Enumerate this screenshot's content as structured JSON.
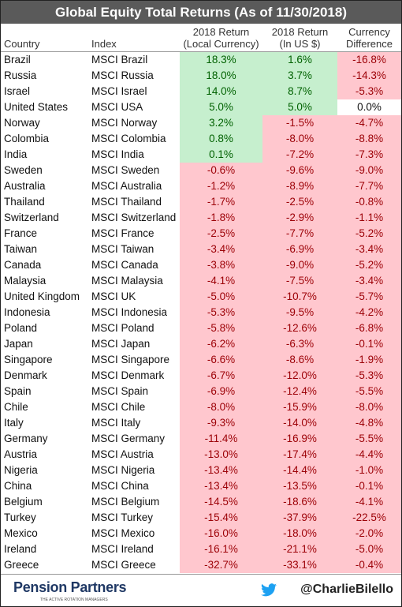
{
  "header": {
    "title": "Global Equity Total Returns (As of 11/30/2018)"
  },
  "table": {
    "columns": [
      [
        "Country"
      ],
      [
        "Index"
      ],
      [
        "2018 Return",
        "(Local Currency)"
      ],
      [
        "2018 Return",
        "(In US $)"
      ],
      [
        "Currency",
        "Difference"
      ]
    ],
    "rows": [
      [
        "Brazil",
        "MSCI Brazil",
        "18.3%",
        "1.6%",
        "-16.8%"
      ],
      [
        "Russia",
        "MSCI Russia",
        "18.0%",
        "3.7%",
        "-14.3%"
      ],
      [
        "Israel",
        "MSCI Israel",
        "14.0%",
        "8.7%",
        "-5.3%"
      ],
      [
        "United States",
        "MSCI USA",
        "5.0%",
        "5.0%",
        "0.0%"
      ],
      [
        "Norway",
        "MSCI Norway",
        "3.2%",
        "-1.5%",
        "-4.7%"
      ],
      [
        "Colombia",
        "MSCI Colombia",
        "0.8%",
        "-8.0%",
        "-8.8%"
      ],
      [
        "India",
        "MSCI India",
        "0.1%",
        "-7.2%",
        "-7.3%"
      ],
      [
        "Sweden",
        "MSCI Sweden",
        "-0.6%",
        "-9.6%",
        "-9.0%"
      ],
      [
        "Australia",
        "MSCI Australia",
        "-1.2%",
        "-8.9%",
        "-7.7%"
      ],
      [
        "Thailand",
        "MSCI Thailand",
        "-1.7%",
        "-2.5%",
        "-0.8%"
      ],
      [
        "Switzerland",
        "MSCI Switzerland",
        "-1.8%",
        "-2.9%",
        "-1.1%"
      ],
      [
        "France",
        "MSCI France",
        "-2.5%",
        "-7.7%",
        "-5.2%"
      ],
      [
        "Taiwan",
        "MSCI Taiwan",
        "-3.4%",
        "-6.9%",
        "-3.4%"
      ],
      [
        "Canada",
        "MSCI Canada",
        "-3.8%",
        "-9.0%",
        "-5.2%"
      ],
      [
        "Malaysia",
        "MSCI Malaysia",
        "-4.1%",
        "-7.5%",
        "-3.4%"
      ],
      [
        "United Kingdom",
        "MSCI UK",
        "-5.0%",
        "-10.7%",
        "-5.7%"
      ],
      [
        "Indonesia",
        "MSCI Indonesia",
        "-5.3%",
        "-9.5%",
        "-4.2%"
      ],
      [
        "Poland",
        "MSCI Poland",
        "-5.8%",
        "-12.6%",
        "-6.8%"
      ],
      [
        "Japan",
        "MSCI Japan",
        "-6.2%",
        "-6.3%",
        "-0.1%"
      ],
      [
        "Singapore",
        "MSCI Singapore",
        "-6.6%",
        "-8.6%",
        "-1.9%"
      ],
      [
        "Denmark",
        "MSCI Denmark",
        "-6.7%",
        "-12.0%",
        "-5.3%"
      ],
      [
        "Spain",
        "MSCI Spain",
        "-6.9%",
        "-12.4%",
        "-5.5%"
      ],
      [
        "Chile",
        "MSCI Chile",
        "-8.0%",
        "-15.9%",
        "-8.0%"
      ],
      [
        "Italy",
        "MSCI Italy",
        "-9.3%",
        "-14.0%",
        "-4.8%"
      ],
      [
        "Germany",
        "MSCI Germany",
        "-11.4%",
        "-16.9%",
        "-5.5%"
      ],
      [
        "Austria",
        "MSCI Austria",
        "-13.0%",
        "-17.4%",
        "-4.4%"
      ],
      [
        "Nigeria",
        "MSCI Nigeria",
        "-13.4%",
        "-14.4%",
        "-1.0%"
      ],
      [
        "China",
        "MSCI China",
        "-13.4%",
        "-13.5%",
        "-0.1%"
      ],
      [
        "Belgium",
        "MSCI Belgium",
        "-14.5%",
        "-18.6%",
        "-4.1%"
      ],
      [
        "Turkey",
        "MSCI Turkey",
        "-15.4%",
        "-37.9%",
        "-22.5%"
      ],
      [
        "Mexico",
        "MSCI Mexico",
        "-16.0%",
        "-18.0%",
        "-2.0%"
      ],
      [
        "Ireland",
        "MSCI Ireland",
        "-16.1%",
        "-21.1%",
        "-5.0%"
      ],
      [
        "Greece",
        "MSCI Greece",
        "-32.7%",
        "-33.1%",
        "-0.4%"
      ]
    ]
  },
  "footer": {
    "brand": "Pension Partners",
    "tagline": "THE ACTIVE ROTATION MANAGERS",
    "handle": "@CharlieBilello"
  }
}
